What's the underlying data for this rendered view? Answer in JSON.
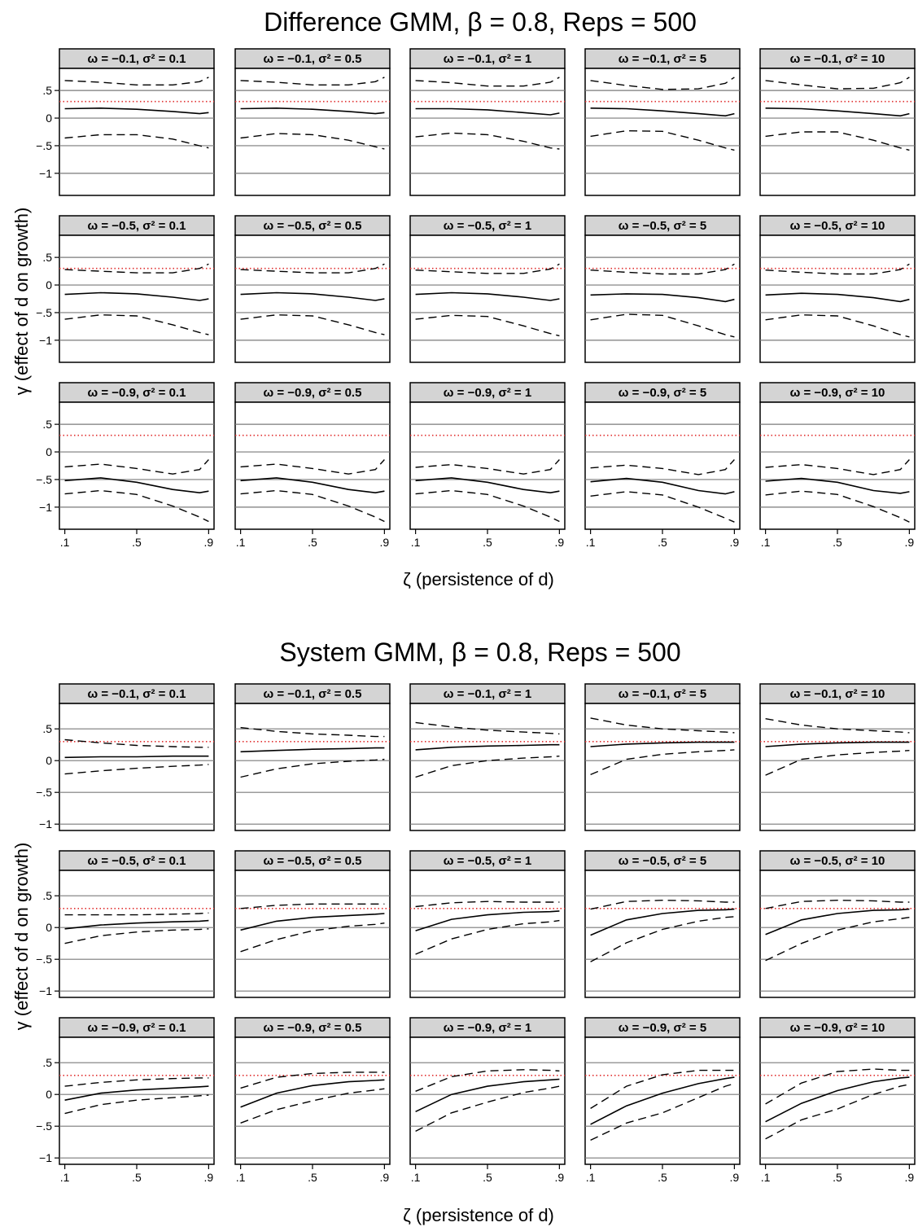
{
  "figures": [
    {
      "title": "Difference GMM, β = 0.8, Reps = 500",
      "ylabel": "γ (effect of d on growth)",
      "xlabel": "ζ (persistence of d)"
    },
    {
      "title": "System GMM, β = 0.8, Reps = 500",
      "ylabel": "γ (effect of d on growth)",
      "xlabel": "ζ (persistence of d)"
    }
  ],
  "colors": {
    "true_value_line": "#e03030",
    "estimate": "#000000",
    "gridline": "#7a7a7a",
    "strip_fill": "#d4d4d4"
  },
  "chart_data": [
    {
      "type": "line",
      "title": "Difference GMM, β = 0.8, Reps = 500",
      "xlabel": "ζ (persistence of d)",
      "ylabel": "γ (effect of d on growth)",
      "x": [
        0.1,
        0.3,
        0.5,
        0.7,
        0.85,
        0.9
      ],
      "xticks": [
        ".1",
        ".5",
        ".9"
      ],
      "xlim": [
        0.07,
        0.93
      ],
      "yticks": [
        ".5",
        "0",
        "−.5",
        "−1"
      ],
      "ylim": [
        -1.4,
        0.9
      ],
      "true_value": 0.3,
      "grid": "horizontal at 0.5, 0, -0.5, -1",
      "panels": [
        {
          "row": 0,
          "col": 0,
          "strip": "ω = −0.1, σ² = 0.1",
          "estimate": [
            0.17,
            0.18,
            0.16,
            0.12,
            0.08,
            0.1
          ],
          "upper": [
            0.68,
            0.65,
            0.6,
            0.6,
            0.66,
            0.74
          ],
          "lower": [
            -0.36,
            -0.3,
            -0.3,
            -0.38,
            -0.5,
            -0.54
          ]
        },
        {
          "row": 0,
          "col": 1,
          "strip": "ω = −0.1, σ² = 0.5",
          "estimate": [
            0.17,
            0.18,
            0.16,
            0.12,
            0.08,
            0.1
          ],
          "upper": [
            0.68,
            0.65,
            0.6,
            0.6,
            0.66,
            0.74
          ],
          "lower": [
            -0.36,
            -0.28,
            -0.3,
            -0.4,
            -0.52,
            -0.56
          ]
        },
        {
          "row": 0,
          "col": 2,
          "strip": "ω = −0.1, σ² = 1",
          "estimate": [
            0.17,
            0.17,
            0.15,
            0.1,
            0.06,
            0.09
          ],
          "upper": [
            0.68,
            0.64,
            0.58,
            0.58,
            0.65,
            0.74
          ],
          "lower": [
            -0.34,
            -0.27,
            -0.3,
            -0.42,
            -0.54,
            -0.56
          ]
        },
        {
          "row": 0,
          "col": 3,
          "strip": "ω = −0.1, σ² = 5",
          "estimate": [
            0.18,
            0.17,
            0.13,
            0.08,
            0.04,
            0.08
          ],
          "upper": [
            0.68,
            0.59,
            0.52,
            0.53,
            0.63,
            0.74
          ],
          "lower": [
            -0.33,
            -0.23,
            -0.24,
            -0.4,
            -0.54,
            -0.58
          ]
        },
        {
          "row": 0,
          "col": 4,
          "strip": "ω = −0.1, σ² = 10",
          "estimate": [
            0.18,
            0.17,
            0.13,
            0.08,
            0.04,
            0.08
          ],
          "upper": [
            0.68,
            0.6,
            0.53,
            0.54,
            0.64,
            0.74
          ],
          "lower": [
            -0.33,
            -0.25,
            -0.25,
            -0.4,
            -0.54,
            -0.58
          ]
        },
        {
          "row": 1,
          "col": 0,
          "strip": "ω = −0.5, σ² = 0.1",
          "estimate": [
            -0.17,
            -0.14,
            -0.16,
            -0.22,
            -0.28,
            -0.25
          ],
          "upper": [
            0.28,
            0.25,
            0.22,
            0.22,
            0.3,
            0.38
          ],
          "lower": [
            -0.62,
            -0.54,
            -0.56,
            -0.72,
            -0.86,
            -0.9
          ]
        },
        {
          "row": 1,
          "col": 1,
          "strip": "ω = −0.5, σ² = 0.5",
          "estimate": [
            -0.17,
            -0.14,
            -0.16,
            -0.22,
            -0.28,
            -0.25
          ],
          "upper": [
            0.28,
            0.25,
            0.22,
            0.22,
            0.3,
            0.38
          ],
          "lower": [
            -0.62,
            -0.54,
            -0.56,
            -0.72,
            -0.86,
            -0.9
          ]
        },
        {
          "row": 1,
          "col": 2,
          "strip": "ω = −0.5, σ² = 1",
          "estimate": [
            -0.17,
            -0.14,
            -0.16,
            -0.22,
            -0.28,
            -0.25
          ],
          "upper": [
            0.27,
            0.24,
            0.21,
            0.21,
            0.29,
            0.38
          ],
          "lower": [
            -0.62,
            -0.55,
            -0.57,
            -0.74,
            -0.88,
            -0.92
          ]
        },
        {
          "row": 1,
          "col": 3,
          "strip": "ω = −0.5, σ² = 5",
          "estimate": [
            -0.18,
            -0.16,
            -0.17,
            -0.23,
            -0.3,
            -0.26
          ],
          "upper": [
            0.27,
            0.23,
            0.2,
            0.2,
            0.28,
            0.38
          ],
          "lower": [
            -0.63,
            -0.53,
            -0.55,
            -0.74,
            -0.9,
            -0.94
          ]
        },
        {
          "row": 1,
          "col": 4,
          "strip": "ω = −0.5, σ² = 10",
          "estimate": [
            -0.18,
            -0.15,
            -0.17,
            -0.23,
            -0.3,
            -0.26
          ],
          "upper": [
            0.27,
            0.23,
            0.2,
            0.2,
            0.28,
            0.38
          ],
          "lower": [
            -0.63,
            -0.54,
            -0.56,
            -0.74,
            -0.9,
            -0.94
          ]
        },
        {
          "row": 2,
          "col": 0,
          "strip": "ω = −0.9, σ² = 0.1",
          "estimate": [
            -0.52,
            -0.47,
            -0.55,
            -0.68,
            -0.74,
            -0.71
          ],
          "upper": [
            -0.27,
            -0.22,
            -0.3,
            -0.4,
            -0.32,
            -0.14
          ],
          "lower": [
            -0.76,
            -0.7,
            -0.77,
            -0.98,
            -1.18,
            -1.26
          ]
        },
        {
          "row": 2,
          "col": 1,
          "strip": "ω = −0.9, σ² = 0.5",
          "estimate": [
            -0.52,
            -0.47,
            -0.55,
            -0.68,
            -0.74,
            -0.71
          ],
          "upper": [
            -0.27,
            -0.22,
            -0.3,
            -0.4,
            -0.32,
            -0.14
          ],
          "lower": [
            -0.76,
            -0.7,
            -0.77,
            -0.98,
            -1.18,
            -1.26
          ]
        },
        {
          "row": 2,
          "col": 2,
          "strip": "ω = −0.9, σ² = 1",
          "estimate": [
            -0.52,
            -0.47,
            -0.55,
            -0.68,
            -0.74,
            -0.71
          ],
          "upper": [
            -0.28,
            -0.23,
            -0.3,
            -0.4,
            -0.32,
            -0.14
          ],
          "lower": [
            -0.76,
            -0.7,
            -0.77,
            -0.98,
            -1.18,
            -1.26
          ]
        },
        {
          "row": 2,
          "col": 3,
          "strip": "ω = −0.9, σ² = 5",
          "estimate": [
            -0.54,
            -0.48,
            -0.55,
            -0.7,
            -0.76,
            -0.72
          ],
          "upper": [
            -0.29,
            -0.24,
            -0.3,
            -0.41,
            -0.32,
            -0.14
          ],
          "lower": [
            -0.8,
            -0.72,
            -0.78,
            -1.0,
            -1.2,
            -1.27
          ]
        },
        {
          "row": 2,
          "col": 4,
          "strip": "ω = −0.9, σ² = 10",
          "estimate": [
            -0.53,
            -0.48,
            -0.55,
            -0.7,
            -0.75,
            -0.72
          ],
          "upper": [
            -0.28,
            -0.23,
            -0.3,
            -0.41,
            -0.32,
            -0.14
          ],
          "lower": [
            -0.78,
            -0.71,
            -0.77,
            -0.99,
            -1.19,
            -1.27
          ]
        }
      ]
    },
    {
      "type": "line",
      "title": "System GMM, β = 0.8, Reps = 500",
      "xlabel": "ζ (persistence of d)",
      "ylabel": "γ (effect of d on growth)",
      "x": [
        0.1,
        0.3,
        0.5,
        0.7,
        0.85,
        0.9
      ],
      "xticks": [
        ".1",
        ".5",
        ".9"
      ],
      "xlim": [
        0.07,
        0.93
      ],
      "yticks": [
        ".5",
        "0",
        "−.5",
        "−1"
      ],
      "ylim": [
        -1.1,
        0.9
      ],
      "true_value": 0.3,
      "grid": "horizontal at 0.5, 0, -0.5, -1",
      "panels": [
        {
          "row": 0,
          "col": 0,
          "strip": "ω = −0.1, σ² = 0.1",
          "estimate": [
            0.05,
            0.06,
            0.06,
            0.07,
            0.07,
            0.07
          ],
          "upper": [
            0.33,
            0.28,
            0.24,
            0.22,
            0.21,
            0.21
          ],
          "lower": [
            -0.21,
            -0.16,
            -0.12,
            -0.09,
            -0.07,
            -0.06
          ]
        },
        {
          "row": 0,
          "col": 1,
          "strip": "ω = −0.1, σ² = 0.5",
          "estimate": [
            0.14,
            0.16,
            0.18,
            0.19,
            0.2,
            0.2
          ],
          "upper": [
            0.52,
            0.46,
            0.42,
            0.4,
            0.38,
            0.38
          ],
          "lower": [
            -0.26,
            -0.13,
            -0.05,
            -0.01,
            0.01,
            0.02
          ]
        },
        {
          "row": 0,
          "col": 2,
          "strip": "ω = −0.1, σ² = 1",
          "estimate": [
            0.17,
            0.21,
            0.23,
            0.24,
            0.25,
            0.25
          ],
          "upper": [
            0.6,
            0.53,
            0.48,
            0.45,
            0.43,
            0.42
          ],
          "lower": [
            -0.26,
            -0.08,
            0.0,
            0.04,
            0.06,
            0.07
          ]
        },
        {
          "row": 0,
          "col": 3,
          "strip": "ω = −0.1, σ² = 5",
          "estimate": [
            0.22,
            0.26,
            0.28,
            0.29,
            0.29,
            0.29
          ],
          "upper": [
            0.67,
            0.56,
            0.5,
            0.47,
            0.45,
            0.44
          ],
          "lower": [
            -0.22,
            0.02,
            0.1,
            0.14,
            0.16,
            0.17
          ]
        },
        {
          "row": 0,
          "col": 4,
          "strip": "ω = −0.1, σ² = 10",
          "estimate": [
            0.22,
            0.26,
            0.28,
            0.29,
            0.29,
            0.29
          ],
          "upper": [
            0.66,
            0.56,
            0.5,
            0.47,
            0.45,
            0.44
          ],
          "lower": [
            -0.23,
            0.02,
            0.09,
            0.13,
            0.15,
            0.16
          ]
        },
        {
          "row": 1,
          "col": 0,
          "strip": "ω = −0.5, σ² = 0.1",
          "estimate": [
            -0.02,
            0.04,
            0.07,
            0.09,
            0.1,
            0.11
          ],
          "upper": [
            0.2,
            0.2,
            0.2,
            0.21,
            0.22,
            0.23
          ],
          "lower": [
            -0.25,
            -0.13,
            -0.07,
            -0.04,
            -0.03,
            -0.02
          ]
        },
        {
          "row": 1,
          "col": 1,
          "strip": "ω = −0.5, σ² = 0.5",
          "estimate": [
            -0.04,
            0.1,
            0.16,
            0.19,
            0.21,
            0.22
          ],
          "upper": [
            0.3,
            0.35,
            0.37,
            0.37,
            0.37,
            0.37
          ],
          "lower": [
            -0.38,
            -0.19,
            -0.05,
            0.02,
            0.05,
            0.07
          ]
        },
        {
          "row": 1,
          "col": 2,
          "strip": "ω = −0.5, σ² = 1",
          "estimate": [
            -0.05,
            0.13,
            0.2,
            0.24,
            0.25,
            0.26
          ],
          "upper": [
            0.33,
            0.39,
            0.41,
            0.4,
            0.4,
            0.4
          ],
          "lower": [
            -0.42,
            -0.18,
            -0.03,
            0.06,
            0.09,
            0.11
          ]
        },
        {
          "row": 1,
          "col": 3,
          "strip": "ω = −0.5, σ² = 5",
          "estimate": [
            -0.12,
            0.12,
            0.22,
            0.27,
            0.28,
            0.29
          ],
          "upper": [
            0.29,
            0.41,
            0.43,
            0.42,
            0.4,
            0.4
          ],
          "lower": [
            -0.54,
            -0.24,
            -0.03,
            0.1,
            0.16,
            0.17
          ]
        },
        {
          "row": 1,
          "col": 4,
          "strip": "ω = −0.5, σ² = 10",
          "estimate": [
            -0.11,
            0.12,
            0.22,
            0.27,
            0.28,
            0.29
          ],
          "upper": [
            0.3,
            0.41,
            0.43,
            0.42,
            0.4,
            0.4
          ],
          "lower": [
            -0.52,
            -0.25,
            -0.04,
            0.09,
            0.14,
            0.16
          ]
        }
      ]
    },
    {
      "type": "line",
      "title": "",
      "xlabel": "ζ (persistence of d)",
      "ylabel": "γ (effect of d on growth)",
      "x": [
        0.1,
        0.3,
        0.5,
        0.7,
        0.85,
        0.9
      ],
      "xticks": [
        ".1",
        ".5",
        ".9"
      ],
      "xlim": [
        0.07,
        0.93
      ],
      "yticks": [
        ".5",
        "0",
        "−.5",
        "−1"
      ],
      "ylim": [
        -1.1,
        0.9
      ],
      "true_value": 0.3,
      "grid": "horizontal at 0.5, 0, -0.5, -1",
      "panels": [
        {
          "row": 2,
          "col": 0,
          "strip": "ω = −0.9, σ² = 0.1",
          "estimate": [
            -0.09,
            0.02,
            0.07,
            0.1,
            0.12,
            0.13
          ],
          "upper": [
            0.13,
            0.19,
            0.23,
            0.25,
            0.26,
            0.26
          ],
          "lower": [
            -0.3,
            -0.16,
            -0.09,
            -0.05,
            -0.02,
            -0.01
          ]
        },
        {
          "row": 2,
          "col": 1,
          "strip": "ω = −0.9, σ² = 0.5",
          "estimate": [
            -0.2,
            0.02,
            0.14,
            0.2,
            0.22,
            0.23
          ],
          "upper": [
            0.1,
            0.27,
            0.33,
            0.35,
            0.35,
            0.35
          ],
          "lower": [
            -0.45,
            -0.24,
            -0.1,
            0.02,
            0.07,
            0.09
          ]
        },
        {
          "row": 2,
          "col": 2,
          "strip": "ω = −0.9, σ² = 1",
          "estimate": [
            -0.27,
            0.0,
            0.13,
            0.2,
            0.23,
            0.24
          ],
          "upper": [
            0.05,
            0.28,
            0.37,
            0.39,
            0.38,
            0.37
          ],
          "lower": [
            -0.58,
            -0.29,
            -0.12,
            0.03,
            0.1,
            0.13
          ]
        },
        {
          "row": 2,
          "col": 3,
          "strip": "ω = −0.9, σ² = 5",
          "estimate": [
            -0.47,
            -0.18,
            0.02,
            0.17,
            0.25,
            0.27
          ],
          "upper": [
            -0.22,
            0.13,
            0.31,
            0.38,
            0.38,
            0.38
          ],
          "lower": [
            -0.72,
            -0.45,
            -0.29,
            -0.05,
            0.13,
            0.17
          ]
        },
        {
          "row": 2,
          "col": 4,
          "strip": "ω = −0.9, σ² = 10",
          "estimate": [
            -0.43,
            -0.14,
            0.06,
            0.2,
            0.26,
            0.27
          ],
          "upper": [
            -0.15,
            0.18,
            0.36,
            0.4,
            0.38,
            0.38
          ],
          "lower": [
            -0.7,
            -0.4,
            -0.23,
            0.0,
            0.13,
            0.16
          ]
        }
      ]
    }
  ]
}
